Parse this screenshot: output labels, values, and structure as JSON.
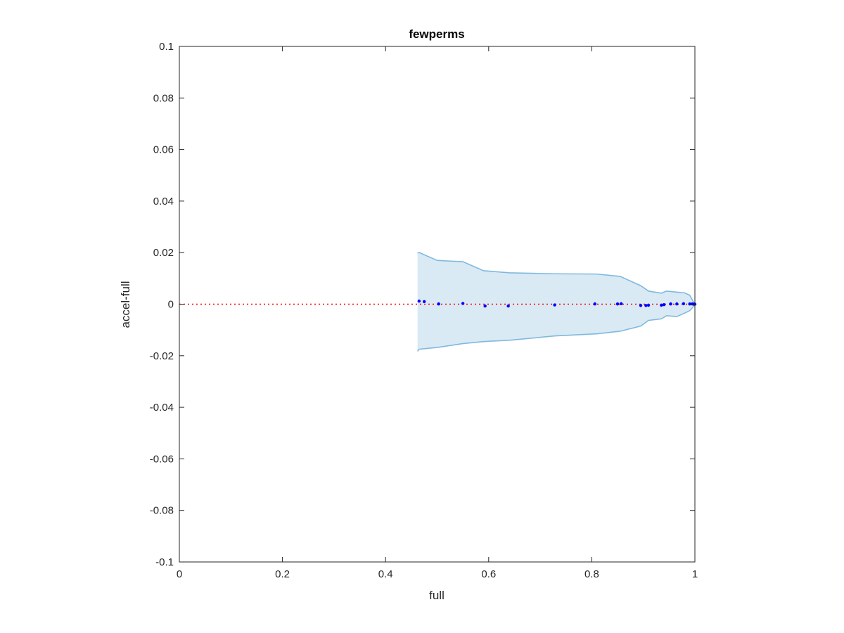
{
  "chart_data": {
    "type": "scatter",
    "title": "fewperms",
    "xlabel": "full",
    "ylabel": "accel-full",
    "xlim": [
      0,
      1
    ],
    "ylim": [
      -0.1,
      0.1
    ],
    "xticks": [
      0,
      0.2,
      0.4,
      0.6,
      0.8,
      1
    ],
    "xtick_labels": [
      "0",
      "0.2",
      "0.4",
      "0.6",
      "0.8",
      "1"
    ],
    "yticks": [
      -0.1,
      -0.08,
      -0.06,
      -0.04,
      -0.02,
      0,
      0.02,
      0.04,
      0.06,
      0.08,
      0.1
    ],
    "ytick_labels": [
      "-0.1",
      "-0.08",
      "-0.06",
      "-0.04",
      "-0.02",
      "0",
      "0.02",
      "0.04",
      "0.06",
      "0.08",
      "0.1"
    ],
    "grid": false,
    "reference_line": {
      "y": 0,
      "color": "#ff0000",
      "style": "dotted"
    },
    "band": {
      "color": "#0072bd",
      "upper": [
        [
          0.462,
          0.0198
        ],
        [
          0.465,
          0.0201
        ],
        [
          0.5,
          0.017
        ],
        [
          0.55,
          0.0165
        ],
        [
          0.59,
          0.013
        ],
        [
          0.64,
          0.0122
        ],
        [
          0.73,
          0.0118
        ],
        [
          0.81,
          0.0117
        ],
        [
          0.855,
          0.0108
        ],
        [
          0.895,
          0.0072
        ],
        [
          0.91,
          0.0051
        ],
        [
          0.935,
          0.0043
        ],
        [
          0.945,
          0.0051
        ],
        [
          0.965,
          0.0047
        ],
        [
          0.98,
          0.0044
        ],
        [
          0.99,
          0.0035
        ],
        [
          0.997,
          0.001
        ],
        [
          1.0,
          0.0002
        ]
      ],
      "lower": [
        [
          0.462,
          -0.0183
        ],
        [
          0.465,
          -0.0175
        ],
        [
          0.5,
          -0.0168
        ],
        [
          0.55,
          -0.0153
        ],
        [
          0.59,
          -0.0145
        ],
        [
          0.64,
          -0.014
        ],
        [
          0.73,
          -0.0123
        ],
        [
          0.81,
          -0.0115
        ],
        [
          0.855,
          -0.0105
        ],
        [
          0.895,
          -0.0085
        ],
        [
          0.91,
          -0.0063
        ],
        [
          0.935,
          -0.0057
        ],
        [
          0.945,
          -0.0045
        ],
        [
          0.965,
          -0.0048
        ],
        [
          0.98,
          -0.0035
        ],
        [
          0.99,
          -0.0025
        ],
        [
          0.997,
          -0.001
        ],
        [
          1.0,
          -0.0002
        ]
      ]
    },
    "points_color": "#0000ff",
    "points": [
      [
        0.465,
        0.0012
      ],
      [
        0.475,
        0.001
      ],
      [
        0.503,
        0.0001
      ],
      [
        0.55,
        0.0003
      ],
      [
        0.593,
        -0.0007
      ],
      [
        0.638,
        -0.0007
      ],
      [
        0.728,
        -0.0003
      ],
      [
        0.806,
        0.0001
      ],
      [
        0.85,
        0.0001
      ],
      [
        0.857,
        0.0002
      ],
      [
        0.895,
        -0.0005
      ],
      [
        0.905,
        -0.0005
      ],
      [
        0.91,
        -0.0004
      ],
      [
        0.935,
        -0.0004
      ],
      [
        0.94,
        -0.0002
      ],
      [
        0.953,
        0.0001
      ],
      [
        0.965,
        0.0001
      ],
      [
        0.978,
        0.0002
      ],
      [
        0.99,
        0.0001
      ],
      [
        0.995,
        0.0001
      ],
      [
        0.998,
        0.0
      ],
      [
        1.0,
        0.0
      ]
    ]
  }
}
